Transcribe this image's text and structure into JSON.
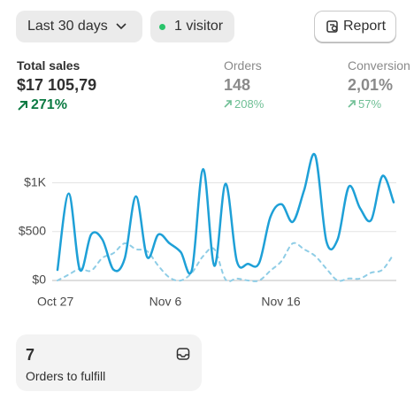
{
  "toolbar": {
    "date_range": "Last 30 days",
    "visitors": "1 visitor",
    "report": "Report"
  },
  "metrics": [
    {
      "label": "Total sales",
      "value": "$17 105,79",
      "change": "271%"
    },
    {
      "label": "Orders",
      "value": "148",
      "change": "208%"
    },
    {
      "label": "Conversion",
      "value": "2,01%",
      "change": "57%"
    }
  ],
  "chart_data": {
    "type": "line",
    "categories": [
      "Oct 27",
      null,
      null,
      null,
      null,
      null,
      null,
      null,
      null,
      null,
      "Nov 6",
      null,
      null,
      null,
      null,
      null,
      null,
      null,
      null,
      null,
      "Nov 16",
      null,
      null,
      null,
      null,
      null,
      null,
      null,
      null,
      null,
      null
    ],
    "series": [
      {
        "color": "#1ea0d7",
        "dashed": false,
        "values": [
          108,
          890,
          108,
          470,
          420,
          110,
          225,
          860,
          240,
          470,
          380,
          290,
          110,
          1140,
          150,
          990,
          200,
          170,
          180,
          650,
          780,
          600,
          920,
          1280,
          400,
          420,
          960,
          740,
          620,
          1070,
          800
        ]
      },
      {
        "color": "#8fcde6",
        "dashed": true,
        "values": [
          0,
          60,
          120,
          100,
          230,
          280,
          380,
          320,
          300,
          150,
          30,
          0,
          80,
          250,
          320,
          10,
          20,
          0,
          0,
          100,
          200,
          380,
          320,
          250,
          120,
          0,
          20,
          20,
          80,
          110,
          270
        ]
      }
    ],
    "ylim": [
      0,
      1150
    ],
    "yticks": [
      {
        "value": 0,
        "label": "$0"
      },
      {
        "value": 500,
        "label": "$500"
      },
      {
        "value": 1000,
        "label": "$1K"
      }
    ],
    "grid": true
  },
  "card": {
    "count": "7",
    "label": "Orders to fulfill"
  }
}
